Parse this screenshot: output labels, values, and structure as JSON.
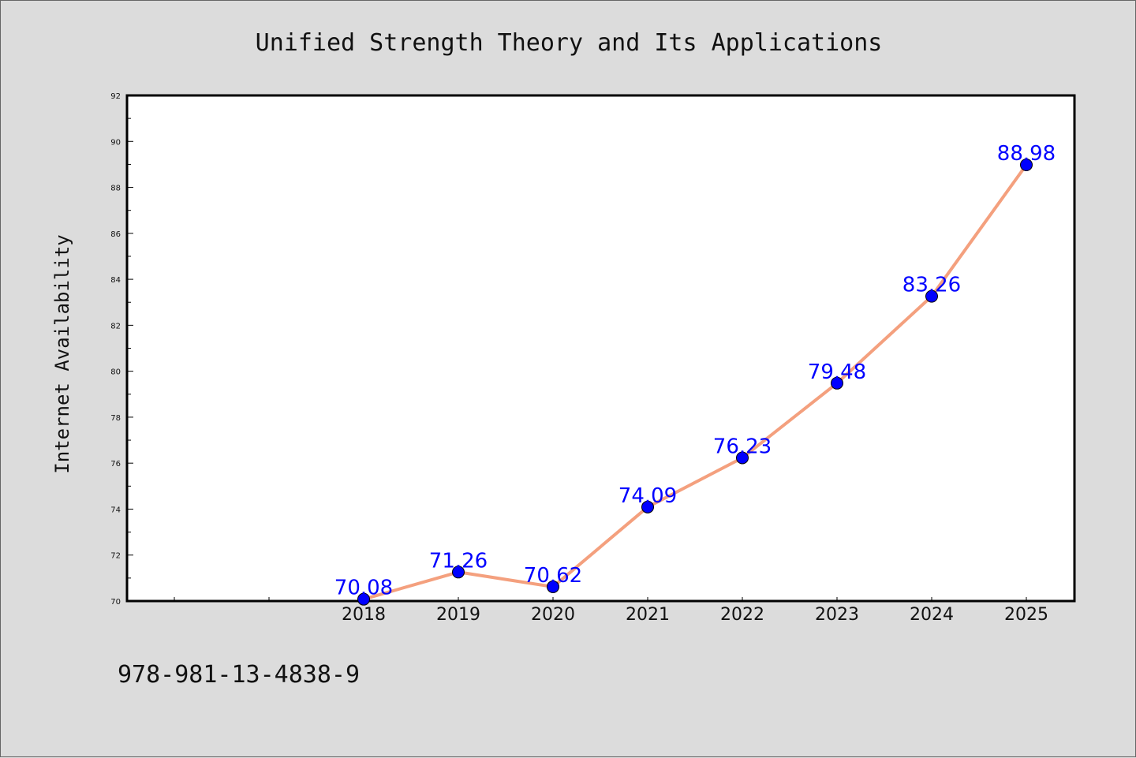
{
  "chart_data": {
    "type": "line",
    "title": "Unified Strength Theory and Its Applications",
    "ylabel": "Internet Availability",
    "xlabel": "",
    "categories": [
      "2018",
      "2019",
      "2020",
      "2021",
      "2022",
      "2023",
      "2024",
      "2025"
    ],
    "values": [
      70.08,
      71.26,
      70.62,
      74.09,
      76.23,
      79.48,
      83.26,
      88.98
    ],
    "data_labels": [
      "70.08",
      "71.26",
      "70.62",
      "74.09",
      "76.23",
      "79.48",
      "83.26",
      "88.98"
    ],
    "ylim": [
      70,
      92
    ],
    "yticks": [
      "70",
      "72",
      "74",
      "76",
      "78",
      "80",
      "82",
      "84",
      "86",
      "88",
      "90",
      "92"
    ],
    "grid": false,
    "legend": "none",
    "colors": {
      "line": "#f4a07e",
      "marker": "#0000ff",
      "data_label": "#0000ff",
      "background": "#dcdcdc",
      "plot_background": "#ffffff"
    }
  },
  "footer": {
    "text": "978-981-13-4838-9"
  }
}
